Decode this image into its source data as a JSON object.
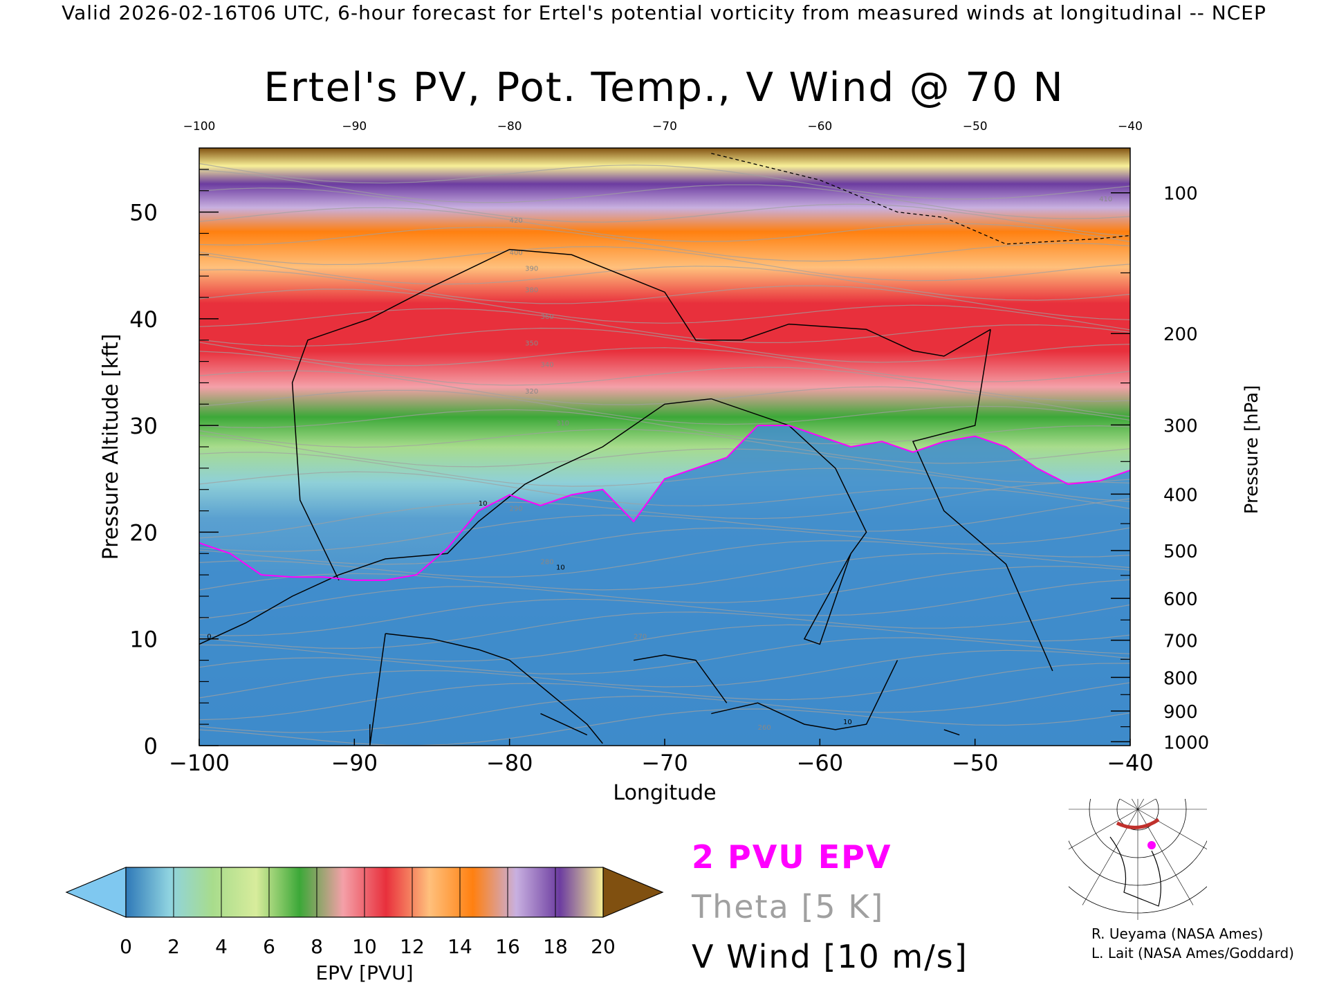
{
  "header": {
    "text": "Valid 2026-02-16T06 UTC, 6-hour forecast for Ertel's potential vorticity from measured winds at longitudinal -- NCEP"
  },
  "colors": {
    "pv_2pvu": "#ff00ff",
    "theta": "#a0a0a0",
    "v_wind": "#000000",
    "colorbar": [
      "#7fc8f0",
      "#2f79b8",
      "#8fd3e0",
      "#a8dc8c",
      "#d8ec9c",
      "#3ca838",
      "#f4a0a8",
      "#e8303c",
      "#ffc07c",
      "#ff8010",
      "#c8b0e0",
      "#6c3ca0",
      "#f8f098",
      "#805010"
    ]
  },
  "chart_data": {
    "type": "heatmap",
    "title": "Ertel's PV, Pot. Temp., V Wind @ 70 N",
    "xlabel": "Longitude",
    "ylabel": "Pressure Altitude [kft]",
    "y2label": "Pressure [hPa]",
    "xlim": [
      -100,
      -40
    ],
    "ylim": [
      0,
      56
    ],
    "x_ticks": [
      "-100",
      "-90",
      "-80",
      "-70",
      "-60",
      "-50",
      "-40"
    ],
    "x_top_ticks": [
      "-100",
      "-90",
      "-80",
      "-70",
      "-60",
      "-50",
      "-40"
    ],
    "y_ticks": [
      "0",
      "10",
      "20",
      "30",
      "40",
      "50"
    ],
    "pressure_ticks": [
      "1000",
      "900",
      "800",
      "700",
      "600",
      "500",
      "400",
      "300",
      "200",
      "100"
    ],
    "colorbar": {
      "label": "EPV [PVU]",
      "ticks": [
        "0",
        "2",
        "4",
        "6",
        "8",
        "10",
        "12",
        "14",
        "16",
        "18",
        "20"
      ],
      "min": 0,
      "max": 20,
      "extend": "both"
    },
    "pv2_boundary": {
      "name": "2 PVU EPV",
      "x": [
        -100,
        -98,
        -96,
        -94,
        -92,
        -90,
        -88,
        -86,
        -84,
        -82,
        -80,
        -78,
        -76,
        -74,
        -72,
        -70,
        -68,
        -66,
        -64,
        -62,
        -60,
        -58,
        -56,
        -54,
        -52,
        -50,
        -48,
        -46,
        -44,
        -42,
        -40
      ],
      "y": [
        19,
        18,
        16,
        15.8,
        15.8,
        15.5,
        15.5,
        16,
        18.5,
        22,
        23.5,
        22.5,
        23.5,
        24,
        21,
        25,
        26,
        27,
        30,
        30,
        29,
        28,
        28.5,
        27.5,
        28.5,
        29,
        28,
        26,
        24.5,
        24.8,
        25.8
      ]
    },
    "theta_contours": {
      "name": "Theta [5 K]",
      "labels": [
        "260",
        "270",
        "280",
        "290",
        "310",
        "320",
        "340",
        "350",
        "360",
        "380",
        "390",
        "400",
        "410",
        "420"
      ]
    },
    "v_wind_contours": {
      "name": "V Wind [10 m/s]",
      "labels": [
        "0",
        "10"
      ]
    }
  },
  "legend": {
    "pv": "2 PVU EPV",
    "theta": "Theta [5 K]",
    "wind": "V Wind [10 m/s]"
  },
  "credits": {
    "line1": "R. Ueyama (NASA Ames)",
    "line2": "L. Lait (NASA Ames/Goddard)"
  }
}
